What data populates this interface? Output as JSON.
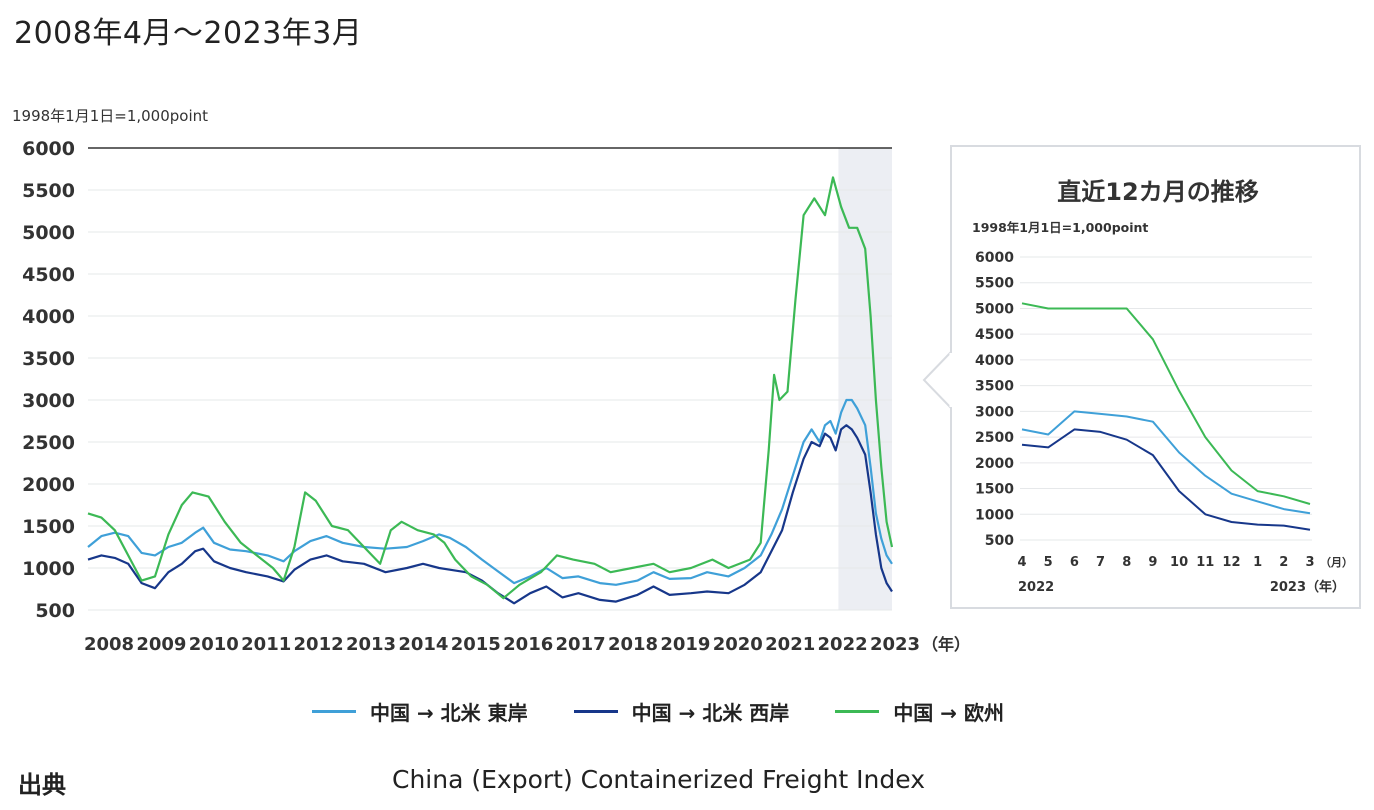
{
  "page": {
    "title": "2008年4月〜2023年3月",
    "source_label": "出典",
    "source_text": "China (Export) Containerized Freight Index"
  },
  "colors": {
    "east": "#3fa0d8",
    "west": "#17378a",
    "europe": "#3cb955",
    "grid": "#e6e8ea",
    "axis": "#333333",
    "shade": "#eceef3"
  },
  "legend": [
    {
      "label": "中国 → 北米 東岸",
      "color": "#3fa0d8"
    },
    {
      "label": "中国 → 北米 西岸",
      "color": "#17378a"
    },
    {
      "label": "中国 → 欧州",
      "color": "#3cb955"
    }
  ],
  "chart_data": [
    {
      "type": "line",
      "unit_label": "1998年1月1日=1,000point",
      "xunit": "（年）",
      "x_ticks": [
        "2008",
        "2009",
        "2010",
        "2011",
        "2012",
        "2013",
        "2014",
        "2015",
        "2016",
        "2017",
        "2018",
        "2019",
        "2020",
        "2021",
        "2022",
        "2023"
      ],
      "y_ticks": [
        500,
        1000,
        1500,
        2000,
        2500,
        3000,
        3500,
        4000,
        4500,
        5000,
        5500,
        6000
      ],
      "xlim": [
        2008.25,
        2023.25
      ],
      "ylim": [
        500,
        6000
      ],
      "highlight_range": [
        2022.25,
        2023.25
      ],
      "grid": true,
      "series": [
        {
          "name": "中国 → 北米 東岸",
          "color": "#3fa0d8",
          "points": [
            [
              2008.25,
              1250
            ],
            [
              2008.5,
              1380
            ],
            [
              2008.75,
              1420
            ],
            [
              2009.0,
              1380
            ],
            [
              2009.25,
              1180
            ],
            [
              2009.5,
              1150
            ],
            [
              2009.75,
              1250
            ],
            [
              2010.0,
              1300
            ],
            [
              2010.25,
              1420
            ],
            [
              2010.4,
              1480
            ],
            [
              2010.6,
              1300
            ],
            [
              2010.9,
              1220
            ],
            [
              2011.2,
              1200
            ],
            [
              2011.6,
              1150
            ],
            [
              2011.9,
              1080
            ],
            [
              2012.1,
              1200
            ],
            [
              2012.4,
              1320
            ],
            [
              2012.7,
              1380
            ],
            [
              2013.0,
              1300
            ],
            [
              2013.4,
              1250
            ],
            [
              2013.8,
              1230
            ],
            [
              2014.2,
              1250
            ],
            [
              2014.5,
              1320
            ],
            [
              2014.8,
              1400
            ],
            [
              2015.0,
              1360
            ],
            [
              2015.3,
              1250
            ],
            [
              2015.6,
              1100
            ],
            [
              2015.9,
              960
            ],
            [
              2016.2,
              820
            ],
            [
              2016.5,
              900
            ],
            [
              2016.8,
              1000
            ],
            [
              2017.1,
              880
            ],
            [
              2017.4,
              900
            ],
            [
              2017.8,
              820
            ],
            [
              2018.1,
              800
            ],
            [
              2018.5,
              850
            ],
            [
              2018.8,
              950
            ],
            [
              2019.1,
              870
            ],
            [
              2019.5,
              880
            ],
            [
              2019.8,
              950
            ],
            [
              2020.2,
              900
            ],
            [
              2020.5,
              1000
            ],
            [
              2020.8,
              1150
            ],
            [
              2021.0,
              1400
            ],
            [
              2021.2,
              1700
            ],
            [
              2021.4,
              2100
            ],
            [
              2021.6,
              2500
            ],
            [
              2021.75,
              2650
            ],
            [
              2021.9,
              2500
            ],
            [
              2022.0,
              2700
            ],
            [
              2022.1,
              2750
            ],
            [
              2022.2,
              2600
            ],
            [
              2022.3,
              2850
            ],
            [
              2022.4,
              3000
            ],
            [
              2022.5,
              3000
            ],
            [
              2022.6,
              2900
            ],
            [
              2022.75,
              2700
            ],
            [
              2022.85,
              2200
            ],
            [
              2022.95,
              1650
            ],
            [
              2023.05,
              1350
            ],
            [
              2023.15,
              1150
            ],
            [
              2023.25,
              1050
            ]
          ]
        },
        {
          "name": "中国 → 北米 西岸",
          "color": "#17378a",
          "points": [
            [
              2008.25,
              1100
            ],
            [
              2008.5,
              1150
            ],
            [
              2008.75,
              1120
            ],
            [
              2009.0,
              1050
            ],
            [
              2009.25,
              820
            ],
            [
              2009.5,
              760
            ],
            [
              2009.75,
              950
            ],
            [
              2010.0,
              1050
            ],
            [
              2010.25,
              1200
            ],
            [
              2010.4,
              1230
            ],
            [
              2010.6,
              1080
            ],
            [
              2010.9,
              1000
            ],
            [
              2011.2,
              950
            ],
            [
              2011.6,
              900
            ],
            [
              2011.9,
              840
            ],
            [
              2012.1,
              980
            ],
            [
              2012.4,
              1100
            ],
            [
              2012.7,
              1150
            ],
            [
              2013.0,
              1080
            ],
            [
              2013.4,
              1050
            ],
            [
              2013.8,
              950
            ],
            [
              2014.2,
              1000
            ],
            [
              2014.5,
              1050
            ],
            [
              2014.8,
              1000
            ],
            [
              2015.0,
              980
            ],
            [
              2015.3,
              950
            ],
            [
              2015.6,
              850
            ],
            [
              2015.9,
              700
            ],
            [
              2016.2,
              580
            ],
            [
              2016.5,
              700
            ],
            [
              2016.8,
              780
            ],
            [
              2017.1,
              650
            ],
            [
              2017.4,
              700
            ],
            [
              2017.8,
              620
            ],
            [
              2018.1,
              600
            ],
            [
              2018.5,
              680
            ],
            [
              2018.8,
              780
            ],
            [
              2019.1,
              680
            ],
            [
              2019.5,
              700
            ],
            [
              2019.8,
              720
            ],
            [
              2020.2,
              700
            ],
            [
              2020.5,
              800
            ],
            [
              2020.8,
              950
            ],
            [
              2021.0,
              1200
            ],
            [
              2021.2,
              1450
            ],
            [
              2021.4,
              1900
            ],
            [
              2021.6,
              2300
            ],
            [
              2021.75,
              2500
            ],
            [
              2021.9,
              2450
            ],
            [
              2022.0,
              2600
            ],
            [
              2022.1,
              2550
            ],
            [
              2022.2,
              2400
            ],
            [
              2022.3,
              2650
            ],
            [
              2022.4,
              2700
            ],
            [
              2022.5,
              2650
            ],
            [
              2022.6,
              2550
            ],
            [
              2022.75,
              2350
            ],
            [
              2022.85,
              1900
            ],
            [
              2022.95,
              1400
            ],
            [
              2023.05,
              1000
            ],
            [
              2023.15,
              820
            ],
            [
              2023.25,
              720
            ]
          ]
        },
        {
          "name": "中国 → 欧州",
          "color": "#3cb955",
          "points": [
            [
              2008.25,
              1650
            ],
            [
              2008.5,
              1600
            ],
            [
              2008.75,
              1450
            ],
            [
              2009.0,
              1150
            ],
            [
              2009.25,
              850
            ],
            [
              2009.5,
              900
            ],
            [
              2009.75,
              1400
            ],
            [
              2010.0,
              1750
            ],
            [
              2010.2,
              1900
            ],
            [
              2010.5,
              1850
            ],
            [
              2010.8,
              1550
            ],
            [
              2011.1,
              1300
            ],
            [
              2011.4,
              1150
            ],
            [
              2011.7,
              1000
            ],
            [
              2011.9,
              850
            ],
            [
              2012.1,
              1250
            ],
            [
              2012.3,
              1900
            ],
            [
              2012.5,
              1800
            ],
            [
              2012.8,
              1500
            ],
            [
              2013.1,
              1450
            ],
            [
              2013.4,
              1250
            ],
            [
              2013.7,
              1050
            ],
            [
              2013.9,
              1450
            ],
            [
              2014.1,
              1550
            ],
            [
              2014.4,
              1450
            ],
            [
              2014.7,
              1400
            ],
            [
              2014.9,
              1300
            ],
            [
              2015.1,
              1100
            ],
            [
              2015.4,
              900
            ],
            [
              2015.7,
              800
            ],
            [
              2016.0,
              640
            ],
            [
              2016.3,
              800
            ],
            [
              2016.7,
              950
            ],
            [
              2017.0,
              1150
            ],
            [
              2017.3,
              1100
            ],
            [
              2017.7,
              1050
            ],
            [
              2018.0,
              950
            ],
            [
              2018.4,
              1000
            ],
            [
              2018.8,
              1050
            ],
            [
              2019.1,
              950
            ],
            [
              2019.5,
              1000
            ],
            [
              2019.9,
              1100
            ],
            [
              2020.2,
              1000
            ],
            [
              2020.6,
              1100
            ],
            [
              2020.8,
              1300
            ],
            [
              2020.95,
              2400
            ],
            [
              2021.05,
              3300
            ],
            [
              2021.15,
              3000
            ],
            [
              2021.3,
              3100
            ],
            [
              2021.45,
              4200
            ],
            [
              2021.6,
              5200
            ],
            [
              2021.8,
              5400
            ],
            [
              2022.0,
              5200
            ],
            [
              2022.15,
              5650
            ],
            [
              2022.3,
              5300
            ],
            [
              2022.45,
              5050
            ],
            [
              2022.6,
              5050
            ],
            [
              2022.75,
              4800
            ],
            [
              2022.85,
              4000
            ],
            [
              2022.95,
              3000
            ],
            [
              2023.05,
              2200
            ],
            [
              2023.15,
              1550
            ],
            [
              2023.25,
              1250
            ]
          ]
        }
      ]
    },
    {
      "type": "line",
      "title": "直近12カ月の推移",
      "unit_label": "1998年1月1日=1,000point",
      "x_ticks": [
        "4",
        "5",
        "6",
        "7",
        "8",
        "9",
        "10",
        "11",
        "12",
        "1",
        "2",
        "3"
      ],
      "month_unit": "（月）",
      "x_year_left": "2022",
      "x_year_right": "2023（年）",
      "y_ticks": [
        500,
        1000,
        1500,
        2000,
        2500,
        3000,
        3500,
        4000,
        4500,
        5000,
        5500,
        6000
      ],
      "ylim": [
        500,
        6000
      ],
      "grid": true,
      "series": [
        {
          "name": "中国 → 北米 東岸",
          "color": "#3fa0d8",
          "values": [
            2650,
            2550,
            3000,
            2950,
            2900,
            2800,
            2200,
            1750,
            1400,
            1250,
            1100,
            1020
          ]
        },
        {
          "name": "中国 → 北米 西岸",
          "color": "#17378a",
          "values": [
            2350,
            2300,
            2650,
            2600,
            2450,
            2150,
            1450,
            1000,
            850,
            800,
            780,
            700
          ]
        },
        {
          "name": "中国 → 欧州",
          "color": "#3cb955",
          "values": [
            5100,
            5000,
            5000,
            5000,
            5000,
            4400,
            3400,
            2500,
            1850,
            1450,
            1350,
            1200
          ]
        }
      ]
    }
  ]
}
